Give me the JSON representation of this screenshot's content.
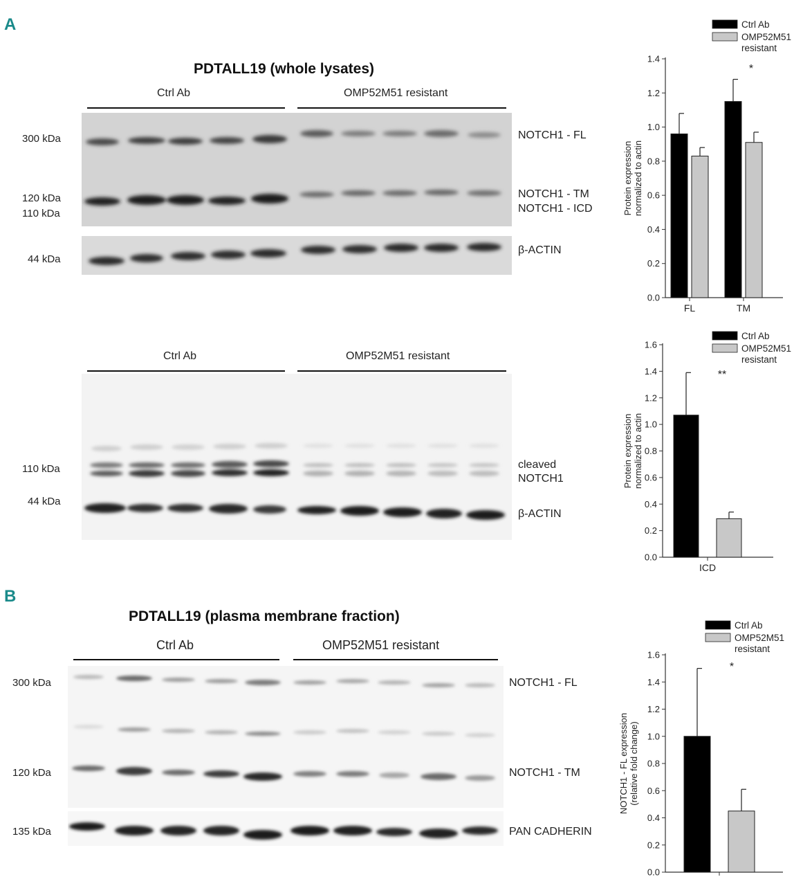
{
  "panelA": {
    "letter": "A",
    "title": "PDTALL19 (whole lysates)",
    "blot1": {
      "groups": [
        "Ctrl Ab",
        "OMP52M51 resistant"
      ],
      "markers": [
        "300 kDa",
        "120 kDa",
        "110 kDa",
        "44 kDa"
      ],
      "bands": [
        "NOTCH1 - FL",
        "NOTCH1 - TM",
        "NOTCH1 - ICD",
        "β-ACTIN"
      ]
    },
    "blot2": {
      "groups": [
        "Ctrl Ab",
        "OMP52M51 resistant"
      ],
      "markers": [
        "110 kDa",
        "44 kDa"
      ],
      "bands": [
        "cleaved",
        "NOTCH1",
        "β-ACTIN"
      ]
    }
  },
  "panelB": {
    "letter": "B",
    "title": "PDTALL19 (plasma membrane fraction)",
    "groups": [
      "Ctrl Ab",
      "OMP52M51 resistant"
    ],
    "markers": [
      "300 kDa",
      "120 kDa",
      "135 kDa"
    ],
    "bands": [
      "NOTCH1 - FL",
      "NOTCH1 - TM",
      "PAN CADHERIN"
    ]
  },
  "chart_data": [
    {
      "type": "bar",
      "categories": [
        "FL",
        "TM"
      ],
      "series": [
        {
          "name": "Ctrl Ab",
          "color": "#000000",
          "values": [
            0.96,
            1.15
          ],
          "errors": [
            0.12,
            0.13
          ]
        },
        {
          "name": "OMP52M51 resistant",
          "color": "#c8c8c8",
          "values": [
            0.83,
            0.91
          ],
          "errors": [
            0.05,
            0.06
          ]
        }
      ],
      "ylabel": "Protein  expression normalized to actin",
      "ylim": [
        0,
        1.4
      ],
      "yticks": [
        "0.0",
        "0.2",
        "0.4",
        "0.6",
        "0.8",
        "1.0",
        "1.2",
        "1.4"
      ],
      "annotations": [
        "*"
      ],
      "legend": "top-right"
    },
    {
      "type": "bar",
      "categories": [
        "ICD"
      ],
      "series": [
        {
          "name": "Ctrl Ab",
          "color": "#000000",
          "values": [
            1.07
          ],
          "errors": [
            0.32
          ]
        },
        {
          "name": "OMP52M51 resistant",
          "color": "#c8c8c8",
          "values": [
            0.29
          ],
          "errors": [
            0.05
          ]
        }
      ],
      "ylabel": "Protein  expression normalized to actin",
      "ylim": [
        0,
        1.6
      ],
      "yticks": [
        "0.0",
        "0.2",
        "0.4",
        "0.6",
        "0.8",
        "1.0",
        "1.2",
        "1.4",
        "1.6"
      ],
      "annotations": [
        "**"
      ],
      "legend": "top-right"
    },
    {
      "type": "bar",
      "categories": [
        ""
      ],
      "series": [
        {
          "name": "Ctrl Ab",
          "color": "#000000",
          "values": [
            1.0
          ],
          "errors": [
            0.5
          ]
        },
        {
          "name": "OMP52M51 resistant",
          "color": "#c8c8c8",
          "values": [
            0.45
          ],
          "errors": [
            0.16
          ]
        }
      ],
      "ylabel": "NOTCH1 - FL expression (relative fold change)",
      "ylim": [
        0,
        1.6
      ],
      "yticks": [
        "0.0",
        "0.2",
        "0.4",
        "0.6",
        "0.8",
        "1.0",
        "1.2",
        "1.4",
        "1.6"
      ],
      "annotations": [
        "*"
      ],
      "legend": "top-right"
    }
  ]
}
